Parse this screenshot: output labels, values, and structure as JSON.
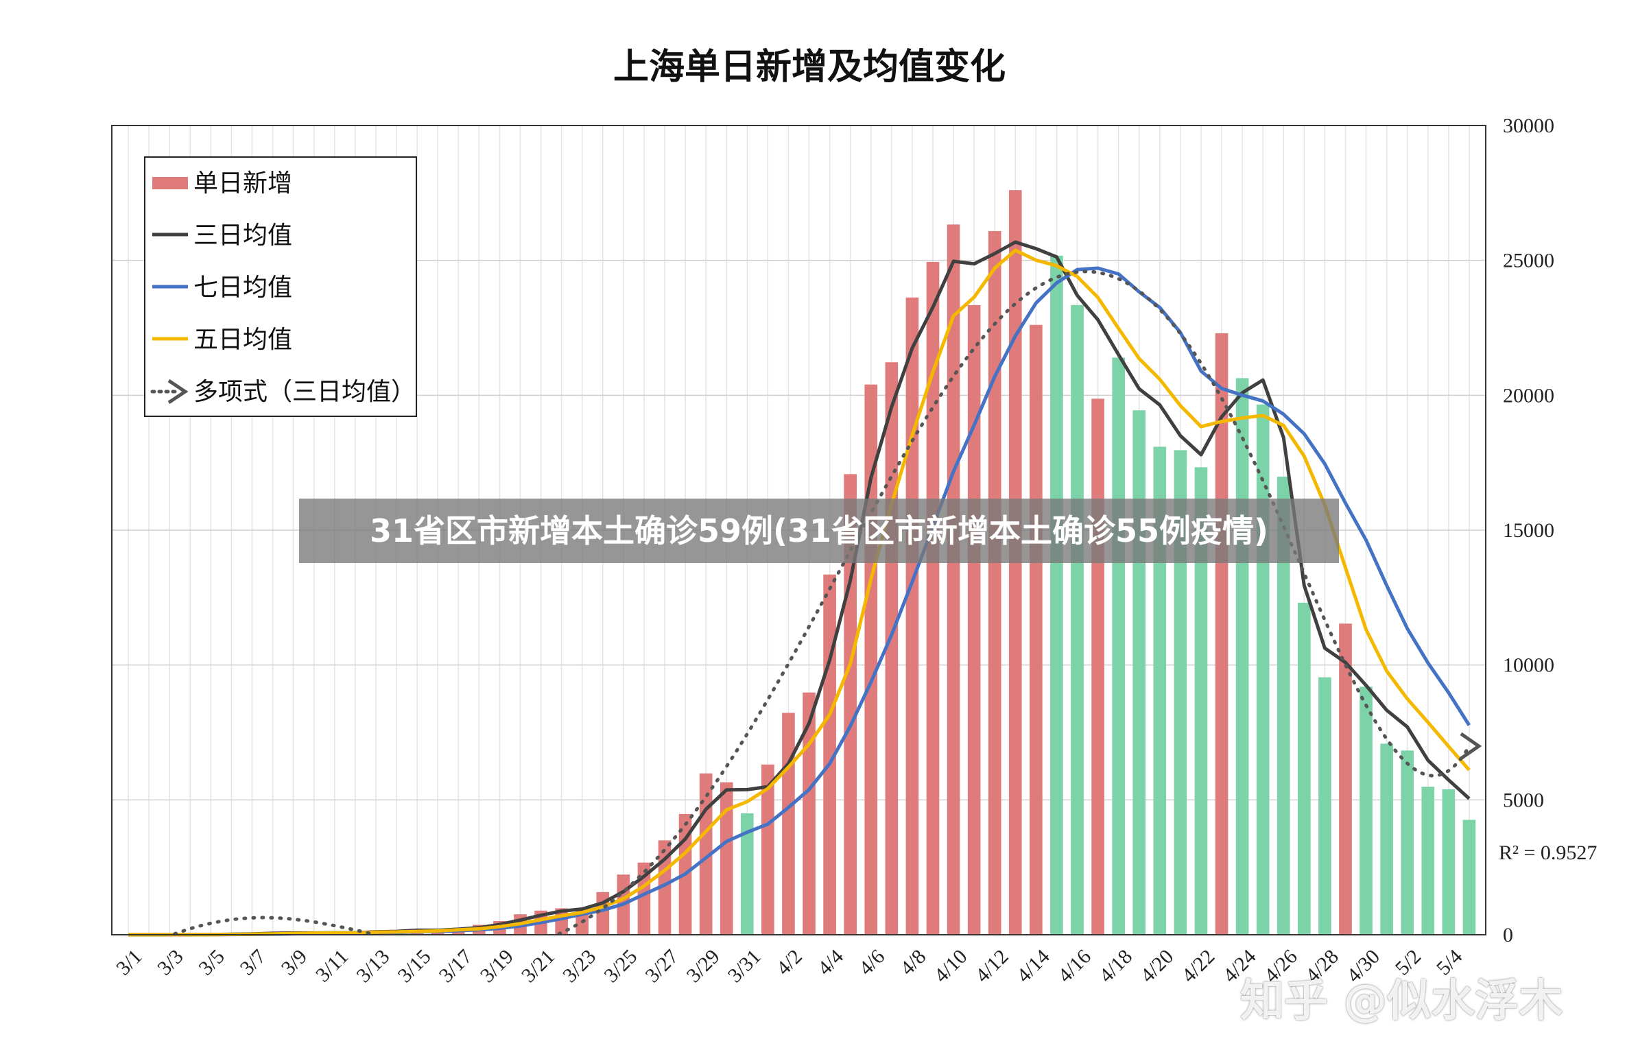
{
  "chart_data": {
    "type": "bar",
    "title": "上海单日新增及均值变化",
    "ylim": [
      0,
      30000
    ],
    "yticks": [
      0,
      5000,
      10000,
      15000,
      20000,
      25000,
      30000
    ],
    "grid": true,
    "legend_placement": "top-left",
    "x_tick_labels": [
      "3/1",
      "3/3",
      "3/5",
      "3/7",
      "3/9",
      "3/11",
      "3/13",
      "3/15",
      "3/17",
      "3/19",
      "3/21",
      "3/23",
      "3/25",
      "3/27",
      "3/29",
      "3/31",
      "4/2",
      "4/4",
      "4/6",
      "4/8",
      "4/10",
      "4/12",
      "4/14",
      "4/16",
      "4/18",
      "4/20",
      "4/22",
      "4/24",
      "4/26",
      "4/28",
      "4/30",
      "5/2",
      "5/4"
    ],
    "categories": [
      "3/1",
      "3/2",
      "3/3",
      "3/4",
      "3/5",
      "3/6",
      "3/7",
      "3/8",
      "3/9",
      "3/10",
      "3/11",
      "3/12",
      "3/13",
      "3/14",
      "3/15",
      "3/16",
      "3/17",
      "3/18",
      "3/19",
      "3/20",
      "3/21",
      "3/22",
      "3/23",
      "3/24",
      "3/25",
      "3/26",
      "3/27",
      "3/28",
      "3/29",
      "3/30",
      "3/31",
      "4/1",
      "4/2",
      "4/3",
      "4/4",
      "4/5",
      "4/6",
      "4/7",
      "4/8",
      "4/9",
      "4/10",
      "4/11",
      "4/12",
      "4/13",
      "4/14",
      "4/15",
      "4/16",
      "4/17",
      "4/18",
      "4/19",
      "4/20",
      "4/21",
      "4/22",
      "4/23",
      "4/24",
      "4/25",
      "4/26",
      "4/27",
      "4/28",
      "4/29",
      "4/30",
      "5/1",
      "5/2",
      "5/3",
      "5/4",
      "5/5"
    ],
    "bars": {
      "name": "单日新增",
      "values": [
        2,
        1,
        3,
        5,
        3,
        45,
        55,
        62,
        76,
        64,
        78,
        76,
        169,
        130,
        203,
        158,
        260,
        367,
        509,
        758,
        896,
        981,
        983,
        1582,
        2231,
        2676,
        3500,
        4477,
        5982,
        5653,
        4502,
        6311,
        8226,
        8981,
        13354,
        17077,
        20398,
        21222,
        23624,
        24943,
        26330,
        23342,
        26087,
        27605,
        22609,
        25173,
        23345,
        19872,
        21395,
        19443,
        18092,
        17964,
        17332,
        22300,
        20634,
        19657,
        16983,
        12309,
        9545,
        11535,
        9195,
        7084,
        6830,
        5487,
        5395,
        4260
      ],
      "colors_by_index": {
        "red_ranges": [
          [
            0,
            29
          ],
          [
            31,
            44
          ],
          [
            47,
            47
          ],
          [
            53,
            53
          ],
          [
            59,
            59
          ]
        ],
        "green_otherwise": true
      }
    },
    "series": [
      {
        "name": "三日均值",
        "values": [
          2,
          2,
          2,
          3,
          4,
          18,
          34,
          54,
          64,
          67,
          73,
          73,
          108,
          125,
          167,
          164,
          207,
          262,
          379,
          545,
          721,
          878,
          953,
          1182,
          1599,
          2163,
          2802,
          3551,
          4653,
          5371,
          5379,
          5489,
          6346,
          7839,
          10187,
          13137,
          16943,
          19566,
          21748,
          23263,
          24966,
          24872,
          25253,
          25678,
          25434,
          25129,
          23699,
          22797,
          21503,
          20237,
          19643,
          18498,
          17796,
          19199,
          20089,
          20564,
          18427,
          12952,
          10624,
          10096,
          9244,
          8324,
          7703,
          6467,
          5737,
          5047
        ],
        "color": "#404040"
      },
      {
        "name": "七日均值",
        "values": [
          2,
          2,
          2,
          2,
          2,
          9,
          16,
          24,
          35,
          42,
          51,
          57,
          71,
          83,
          109,
          121,
          150,
          185,
          239,
          326,
          452,
          598,
          760,
          911,
          1138,
          1500,
          1849,
          2255,
          2856,
          3457,
          3800,
          4101,
          4721,
          5383,
          6345,
          7736,
          9368,
          11119,
          13082,
          15125,
          17179,
          18886,
          20694,
          22201,
          23420,
          24163,
          24658,
          24713,
          24495,
          23835,
          23252,
          22324,
          20895,
          20253,
          20003,
          19787,
          19297,
          18573,
          17455,
          16003,
          14627,
          12951,
          11348,
          10079,
          8973,
          7767
        ],
        "color": "#4472C4"
      },
      {
        "name": "五日均值",
        "values": [
          2,
          2,
          2,
          2,
          2,
          12,
          22,
          34,
          49,
          60,
          67,
          68,
          93,
          103,
          125,
          143,
          184,
          218,
          299,
          410,
          558,
          702,
          825,
          1035,
          1336,
          1808,
          2384,
          3040,
          3832,
          4631,
          4935,
          5417,
          6217,
          7066,
          8163,
          10046,
          13186,
          15957,
          18521,
          20863,
          22945,
          23633,
          24711,
          25373,
          25008,
          24800,
          24401,
          23627,
          22478,
          21361,
          20592,
          19614,
          18837,
          19026,
          19156,
          19249,
          18880,
          17743,
          15930,
          13606,
          11312,
          9779,
          8747,
          7876,
          6981,
          6107
        ],
        "color": "#F5B800"
      },
      {
        "name": "多项式（三日均值）",
        "type": "polynomial-trend",
        "dotted": true,
        "r2_label": "R² = 0.9527",
        "color": "#555555"
      }
    ]
  },
  "banner_text": "31省区市新增本土确诊59例(31省区市新增本土确诊55例疫情)",
  "watermark_text": "知乎 @似水浮木"
}
